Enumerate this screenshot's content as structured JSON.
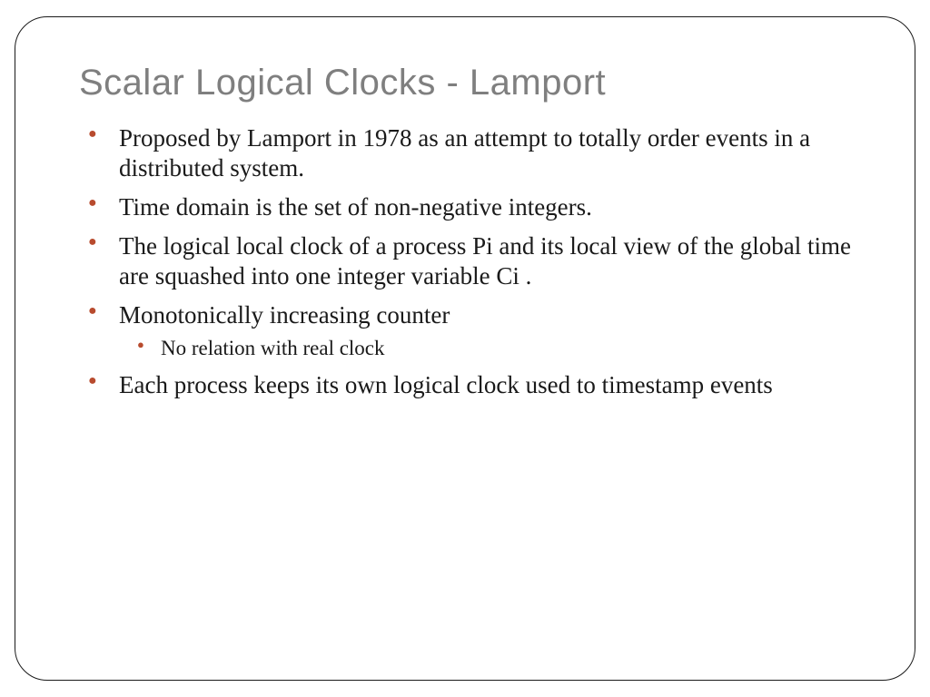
{
  "slide": {
    "title": "Scalar Logical Clocks - Lamport",
    "title_color": "#7f7f7f",
    "title_fontsize": 40,
    "bullet_color": "#b84b2e",
    "body_color": "#1a1a1a",
    "body_fontsize": 27,
    "sub_fontsize": 23,
    "border_color": "#1a1a1a",
    "border_radius": 36,
    "background": "#ffffff",
    "bullets": [
      {
        "text": "Proposed by Lamport in 1978 as an attempt to totally order events in a distributed system."
      },
      {
        "text": "Time domain is the set of non-negative integers."
      },
      {
        "text": "The logical local clock of a process Pi and its local view of the global time are squashed into one integer variable Ci ."
      },
      {
        "text": "Monotonically increasing counter",
        "sub": [
          {
            "text": "No relation with real clock"
          }
        ]
      },
      {
        "text": "Each process keeps its own logical clock used to timestamp events"
      }
    ]
  }
}
